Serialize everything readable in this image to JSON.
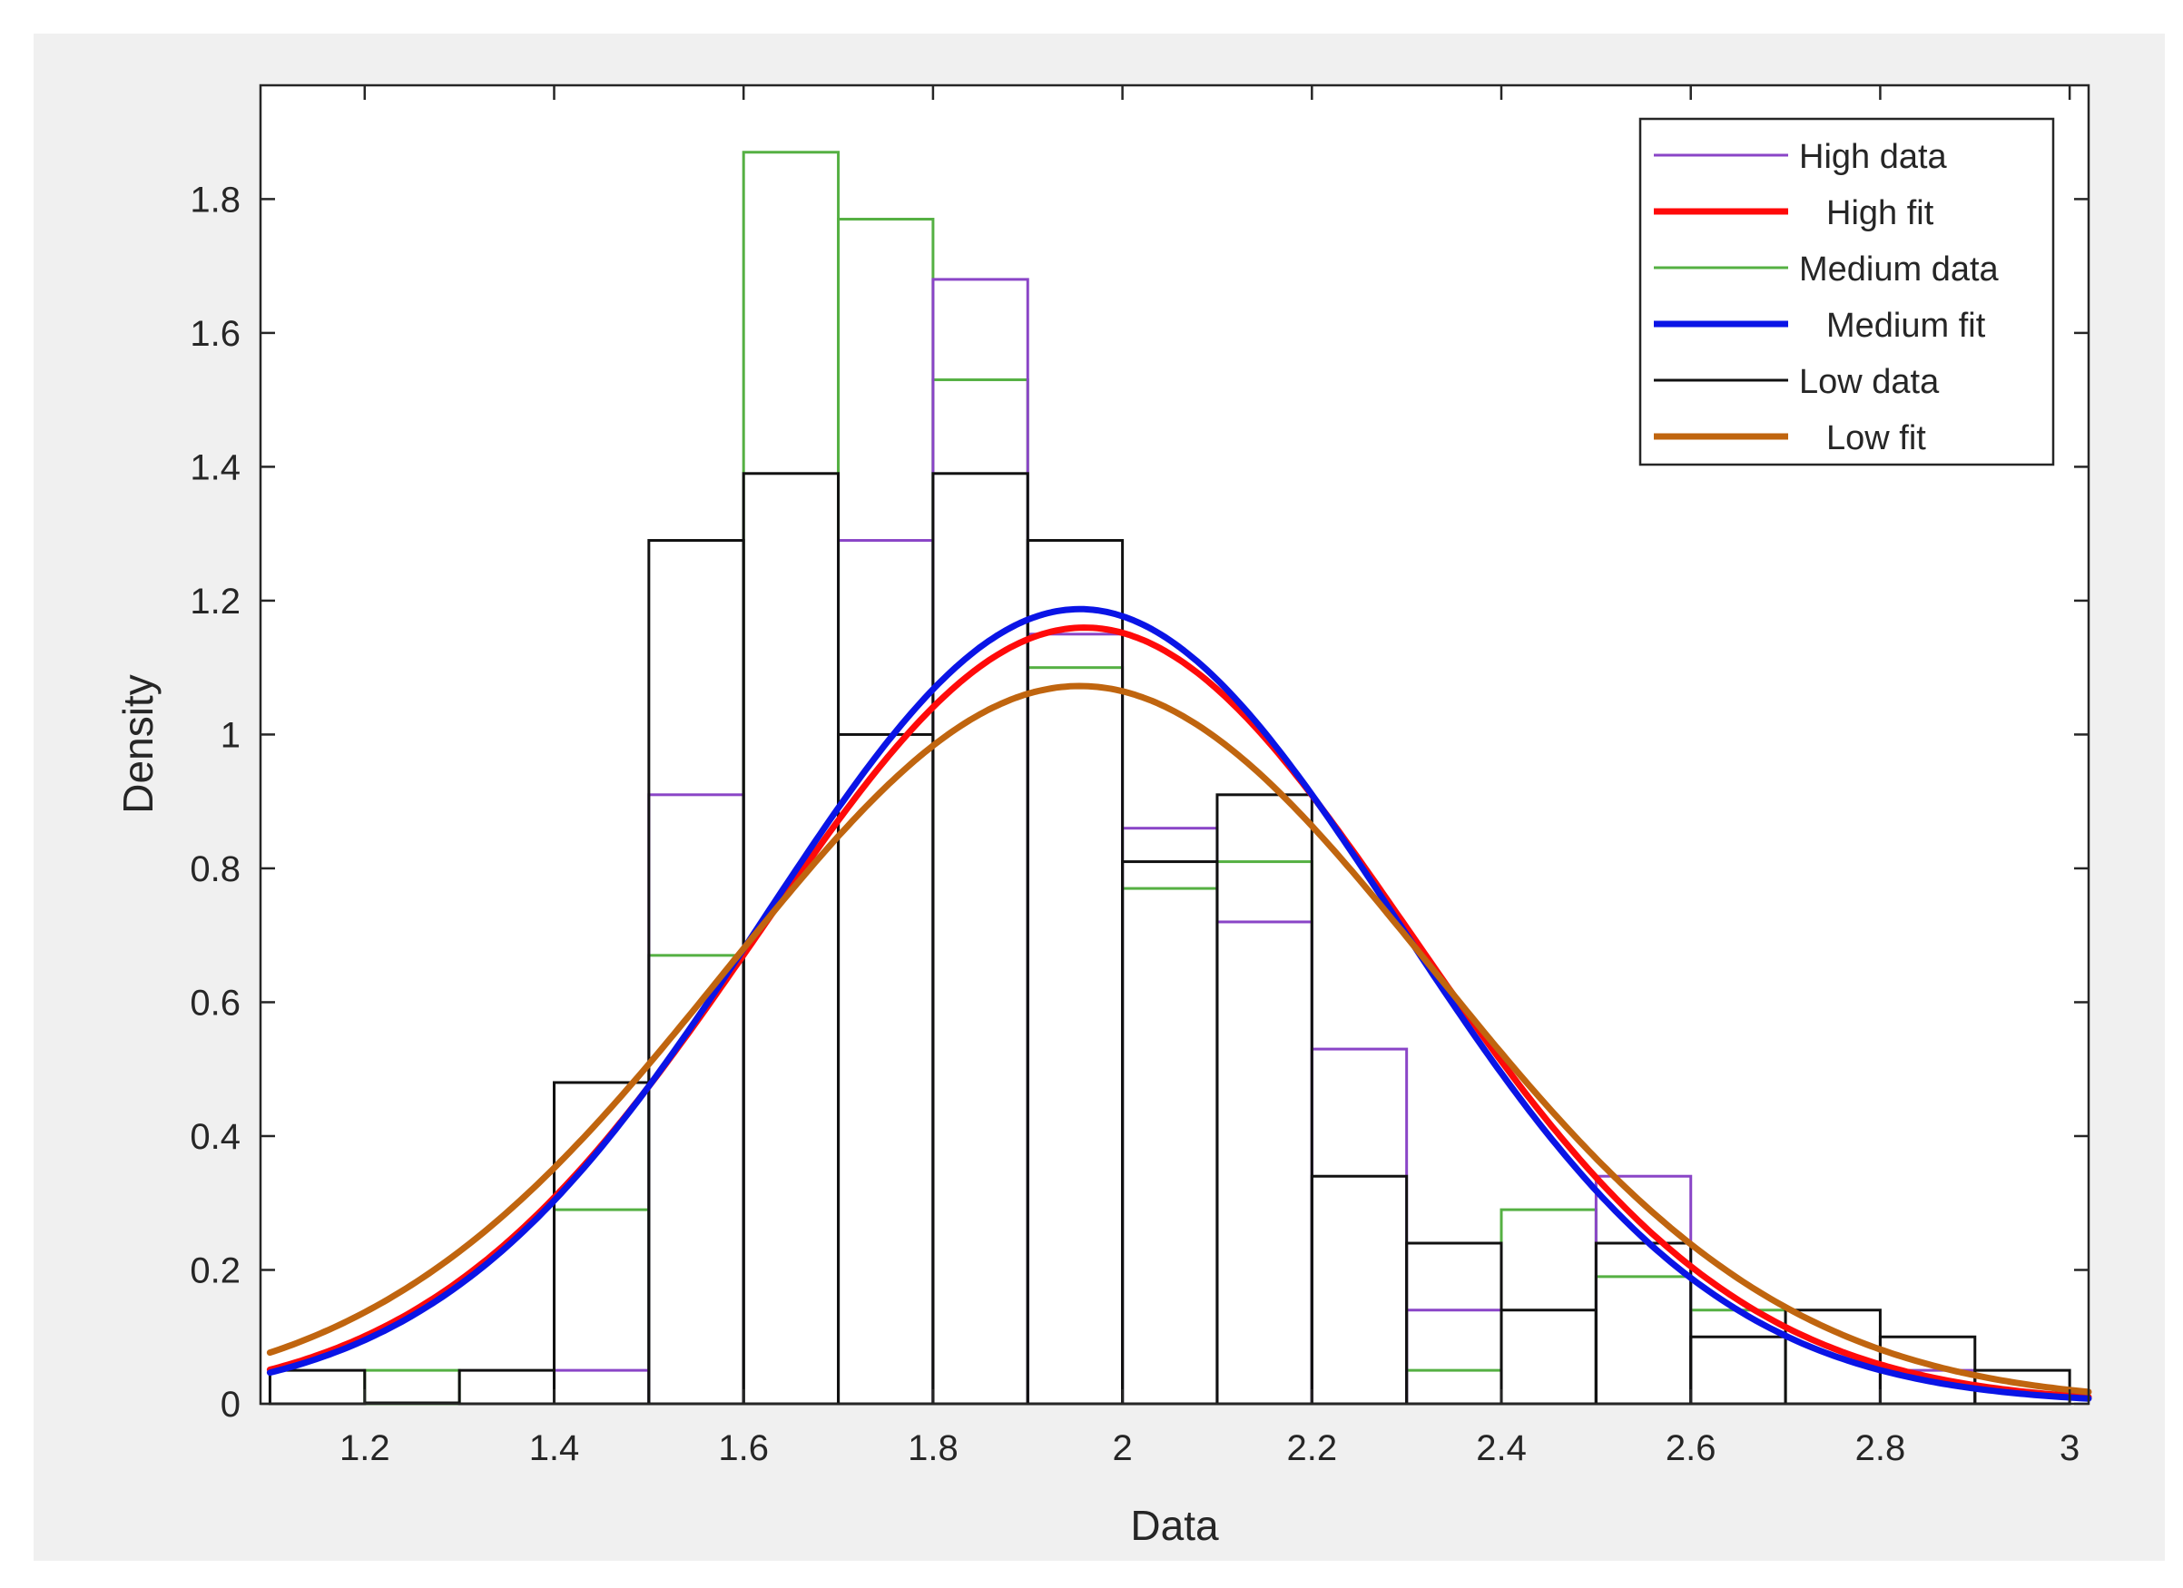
{
  "chart_data": {
    "type": "histogram",
    "title": "",
    "xlabel": "Data",
    "ylabel": "Density",
    "xlim": [
      1.09,
      3.02
    ],
    "ylim": [
      0,
      1.97
    ],
    "grid": false,
    "legend_position": "top-right",
    "xticks": [
      1.2,
      1.4,
      1.6,
      1.8,
      2,
      2.2,
      2.4,
      2.6,
      2.8,
      3
    ],
    "xtick_labels": [
      "1.2",
      "1.4",
      "1.6",
      "1.8",
      "2",
      "2.2",
      "2.4",
      "2.6",
      "2.8",
      "3"
    ],
    "yticks": [
      0,
      0.2,
      0.4,
      0.6,
      0.8,
      1,
      1.2,
      1.4,
      1.6,
      1.8
    ],
    "ytick_labels": [
      "0",
      "0.2",
      "0.4",
      "0.6",
      "0.8",
      "1",
      "1.2",
      "1.4",
      "1.6",
      "1.8"
    ],
    "bin_edges": [
      1.1,
      1.2,
      1.3,
      1.4,
      1.5,
      1.6,
      1.7,
      1.8,
      1.9,
      2.0,
      2.1,
      2.2,
      2.3,
      2.4,
      2.5,
      2.6,
      2.7,
      2.8,
      2.9,
      3.0
    ],
    "histograms": [
      {
        "name": "Medium data",
        "color": "#55b043",
        "values": [
          0,
          0.05,
          0,
          0.29,
          0.67,
          1.87,
          1.77,
          1.53,
          1.1,
          0.77,
          0.81,
          0,
          0.05,
          0.29,
          0.19,
          0.14,
          0,
          0,
          0
        ]
      },
      {
        "name": "High data",
        "color": "#8a45c7",
        "values": [
          0,
          0,
          0,
          0.05,
          0.91,
          0,
          1.29,
          1.68,
          1.15,
          0.86,
          0.72,
          0.53,
          0.14,
          0,
          0.34,
          0,
          0,
          0.05,
          0
        ]
      },
      {
        "name": "Low data",
        "color": "#111111",
        "values": [
          0.05,
          0,
          0.05,
          0.48,
          1.29,
          1.39,
          1.0,
          1.39,
          1.29,
          0.81,
          0.91,
          0.34,
          0.24,
          0.14,
          0.24,
          0.1,
          0.14,
          0.1,
          0.05
        ]
      }
    ],
    "fits": [
      {
        "name": "High fit",
        "color": "#ff0a0a",
        "distribution": "normal",
        "mu": 1.96,
        "sigma": 0.344
      },
      {
        "name": "Medium fit",
        "color": "#0a14e6",
        "distribution": "normal",
        "mu": 1.955,
        "sigma": 0.336
      },
      {
        "name": "Low fit",
        "color": "#c0650f",
        "distribution": "normal",
        "mu": 1.955,
        "sigma": 0.372
      }
    ],
    "legend": [
      {
        "label": "High data",
        "color": "#8a45c7",
        "style": "thin"
      },
      {
        "label": "High fit",
        "color": "#ff0a0a",
        "style": "thick"
      },
      {
        "label": "Medium data",
        "color": "#55b043",
        "style": "thin"
      },
      {
        "label": "Medium fit",
        "color": "#0a14e6",
        "style": "thick"
      },
      {
        "label": "Low data",
        "color": "#111111",
        "style": "thin"
      },
      {
        "label": "Low fit",
        "color": "#c0650f",
        "style": "thick"
      }
    ]
  }
}
